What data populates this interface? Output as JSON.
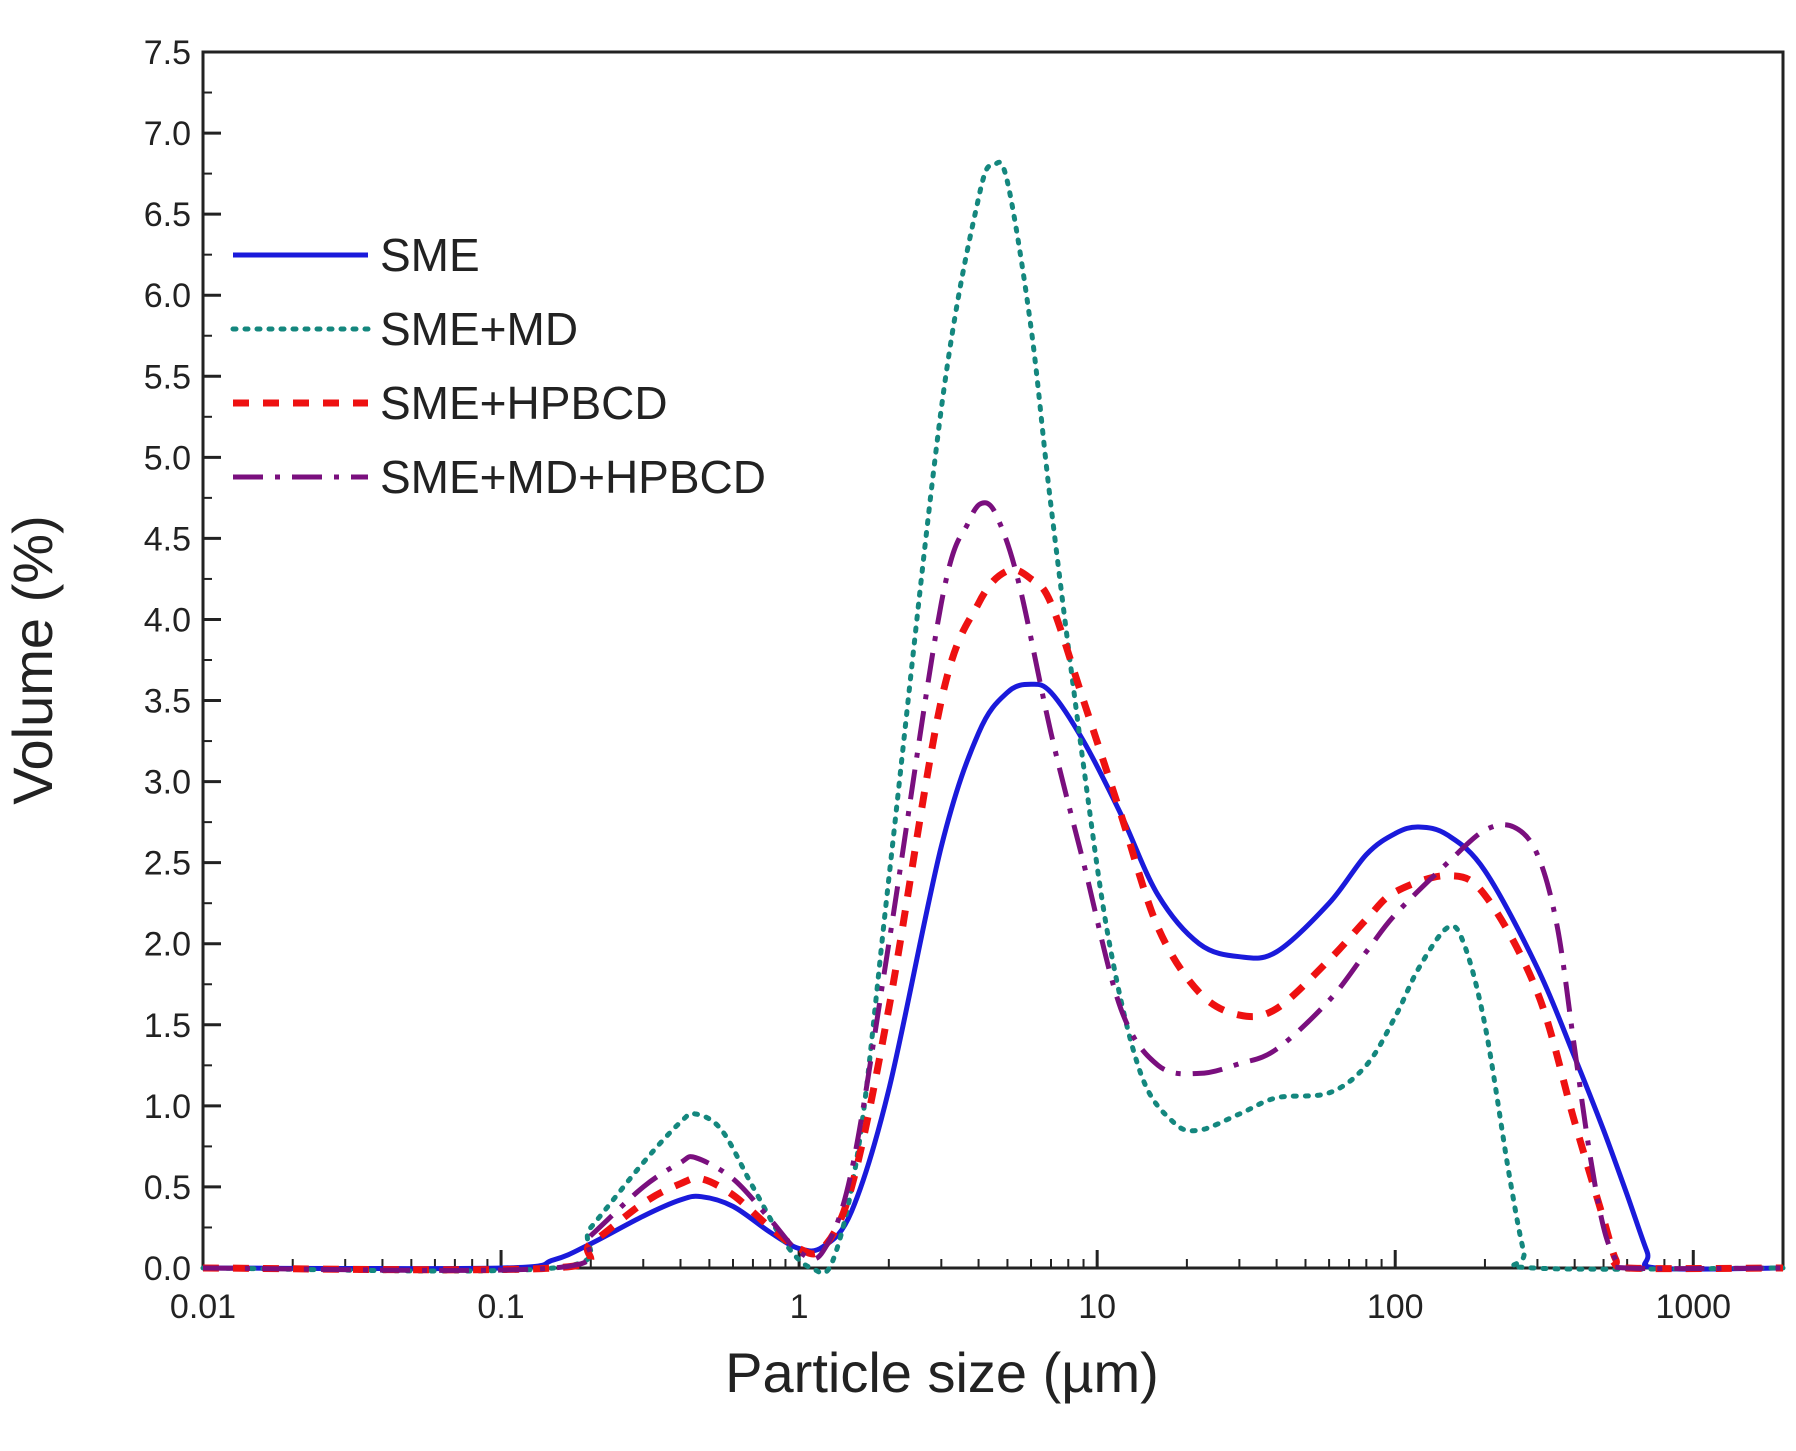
{
  "chart_data": {
    "type": "line",
    "title": "",
    "xlabel": "Particle size (µm)",
    "ylabel": "Volume (%)",
    "x_scale": "log",
    "xlim": [
      0.01,
      2000
    ],
    "ylim": [
      0,
      7.5
    ],
    "x_ticks": [
      {
        "value": 0.01,
        "label": "0.01"
      },
      {
        "value": 0.1,
        "label": "0.1"
      },
      {
        "value": 1,
        "label": "1"
      },
      {
        "value": 10,
        "label": "10"
      },
      {
        "value": 100,
        "label": "100"
      },
      {
        "value": 1000,
        "label": "1000"
      }
    ],
    "y_ticks": [
      {
        "value": 0.0,
        "label": "0.0"
      },
      {
        "value": 0.5,
        "label": "0.5"
      },
      {
        "value": 1.0,
        "label": "1.0"
      },
      {
        "value": 1.5,
        "label": "1.5"
      },
      {
        "value": 2.0,
        "label": "2.0"
      },
      {
        "value": 2.5,
        "label": "2.5"
      },
      {
        "value": 3.0,
        "label": "3.0"
      },
      {
        "value": 3.5,
        "label": "3.5"
      },
      {
        "value": 4.0,
        "label": "4.0"
      },
      {
        "value": 4.5,
        "label": "4.5"
      },
      {
        "value": 5.0,
        "label": "5.0"
      },
      {
        "value": 5.5,
        "label": "5.5"
      },
      {
        "value": 6.0,
        "label": "6.0"
      },
      {
        "value": 6.5,
        "label": "6.5"
      },
      {
        "value": 7.0,
        "label": "7.0"
      },
      {
        "value": 7.5,
        "label": "7.5"
      }
    ],
    "grid": false,
    "legend_position": "top-left",
    "series": [
      {
        "name": "SME",
        "color": "#1a1adb",
        "style": "solid",
        "points": [
          [
            0.01,
            0
          ],
          [
            0.1,
            0
          ],
          [
            0.15,
            0.05
          ],
          [
            0.2,
            0.15
          ],
          [
            0.3,
            0.32
          ],
          [
            0.4,
            0.42
          ],
          [
            0.47,
            0.44
          ],
          [
            0.6,
            0.38
          ],
          [
            0.8,
            0.22
          ],
          [
            1.0,
            0.12
          ],
          [
            1.2,
            0.13
          ],
          [
            1.5,
            0.35
          ],
          [
            2.0,
            1.1
          ],
          [
            3.0,
            2.6
          ],
          [
            4.0,
            3.3
          ],
          [
            5.0,
            3.55
          ],
          [
            6.0,
            3.6
          ],
          [
            7.0,
            3.55
          ],
          [
            9.0,
            3.25
          ],
          [
            12.0,
            2.8
          ],
          [
            16.0,
            2.3
          ],
          [
            22.0,
            2.0
          ],
          [
            30.0,
            1.92
          ],
          [
            40.0,
            1.95
          ],
          [
            60.0,
            2.25
          ],
          [
            80.0,
            2.55
          ],
          [
            100.0,
            2.68
          ],
          [
            120.0,
            2.72
          ],
          [
            150.0,
            2.67
          ],
          [
            200.0,
            2.45
          ],
          [
            300.0,
            1.85
          ],
          [
            400.0,
            1.3
          ],
          [
            500.0,
            0.85
          ],
          [
            600.0,
            0.45
          ],
          [
            700.0,
            0.1
          ],
          [
            750.0,
            0.0
          ],
          [
            2000.0,
            0.0
          ]
        ]
      },
      {
        "name": "SME+MD",
        "color": "#14877e",
        "style": "dotted",
        "points": [
          [
            0.01,
            0
          ],
          [
            0.15,
            0
          ],
          [
            0.2,
            0.25
          ],
          [
            0.3,
            0.65
          ],
          [
            0.4,
            0.9
          ],
          [
            0.45,
            0.95
          ],
          [
            0.55,
            0.85
          ],
          [
            0.7,
            0.5
          ],
          [
            0.9,
            0.15
          ],
          [
            1.1,
            0.0
          ],
          [
            1.3,
            0.05
          ],
          [
            1.6,
            0.8
          ],
          [
            2.0,
            2.4
          ],
          [
            3.0,
            5.3
          ],
          [
            4.0,
            6.6
          ],
          [
            4.5,
            6.8
          ],
          [
            5.0,
            6.7
          ],
          [
            6.0,
            5.8
          ],
          [
            7.0,
            4.7
          ],
          [
            9.0,
            3.1
          ],
          [
            11.0,
            2.0
          ],
          [
            14.0,
            1.2
          ],
          [
            18.0,
            0.9
          ],
          [
            22.0,
            0.85
          ],
          [
            30.0,
            0.95
          ],
          [
            40.0,
            1.05
          ],
          [
            60.0,
            1.08
          ],
          [
            80.0,
            1.25
          ],
          [
            100.0,
            1.55
          ],
          [
            120.0,
            1.85
          ],
          [
            150.0,
            2.1
          ],
          [
            170.0,
            2.0
          ],
          [
            200.0,
            1.5
          ],
          [
            240.0,
            0.6
          ],
          [
            270.0,
            0.1
          ],
          [
            290.0,
            0.0
          ],
          [
            2000.0,
            0.0
          ]
        ]
      },
      {
        "name": "SME+HPBCD",
        "color": "#ee1111",
        "style": "dashed",
        "points": [
          [
            0.01,
            0
          ],
          [
            0.15,
            0
          ],
          [
            0.2,
            0.15
          ],
          [
            0.3,
            0.4
          ],
          [
            0.4,
            0.52
          ],
          [
            0.47,
            0.55
          ],
          [
            0.6,
            0.45
          ],
          [
            0.8,
            0.25
          ],
          [
            1.0,
            0.12
          ],
          [
            1.2,
            0.12
          ],
          [
            1.5,
            0.5
          ],
          [
            2.0,
            1.6
          ],
          [
            3.0,
            3.5
          ],
          [
            4.0,
            4.1
          ],
          [
            5.0,
            4.3
          ],
          [
            6.0,
            4.25
          ],
          [
            7.0,
            4.1
          ],
          [
            9.0,
            3.5
          ],
          [
            12.0,
            2.8
          ],
          [
            16.0,
            2.1
          ],
          [
            22.0,
            1.7
          ],
          [
            30.0,
            1.56
          ],
          [
            40.0,
            1.6
          ],
          [
            60.0,
            1.9
          ],
          [
            80.0,
            2.15
          ],
          [
            100.0,
            2.32
          ],
          [
            150.0,
            2.42
          ],
          [
            200.0,
            2.3
          ],
          [
            300.0,
            1.7
          ],
          [
            400.0,
            0.9
          ],
          [
            500.0,
            0.3
          ],
          [
            550.0,
            0.05
          ],
          [
            600.0,
            0.0
          ],
          [
            2000.0,
            0.0
          ]
        ]
      },
      {
        "name": "SME+MD+HPBCD",
        "color": "#7a0f7e",
        "style": "dashdot",
        "points": [
          [
            0.01,
            0
          ],
          [
            0.15,
            0
          ],
          [
            0.2,
            0.2
          ],
          [
            0.3,
            0.5
          ],
          [
            0.4,
            0.65
          ],
          [
            0.45,
            0.68
          ],
          [
            0.6,
            0.55
          ],
          [
            0.8,
            0.3
          ],
          [
            1.0,
            0.1
          ],
          [
            1.2,
            0.1
          ],
          [
            1.5,
            0.6
          ],
          [
            2.0,
            2.0
          ],
          [
            3.0,
            4.1
          ],
          [
            3.7,
            4.6
          ],
          [
            4.2,
            4.72
          ],
          [
            4.7,
            4.6
          ],
          [
            5.5,
            4.2
          ],
          [
            7.0,
            3.3
          ],
          [
            9.0,
            2.5
          ],
          [
            12.0,
            1.6
          ],
          [
            16.0,
            1.25
          ],
          [
            22.0,
            1.2
          ],
          [
            30.0,
            1.26
          ],
          [
            40.0,
            1.35
          ],
          [
            60.0,
            1.65
          ],
          [
            80.0,
            1.95
          ],
          [
            100.0,
            2.18
          ],
          [
            150.0,
            2.5
          ],
          [
            200.0,
            2.7
          ],
          [
            250.0,
            2.72
          ],
          [
            300.0,
            2.55
          ],
          [
            350.0,
            2.1
          ],
          [
            400.0,
            1.35
          ],
          [
            450.0,
            0.7
          ],
          [
            500.0,
            0.25
          ],
          [
            550.0,
            0.05
          ],
          [
            600.0,
            0.0
          ],
          [
            2000.0,
            0.0
          ]
        ]
      }
    ]
  }
}
